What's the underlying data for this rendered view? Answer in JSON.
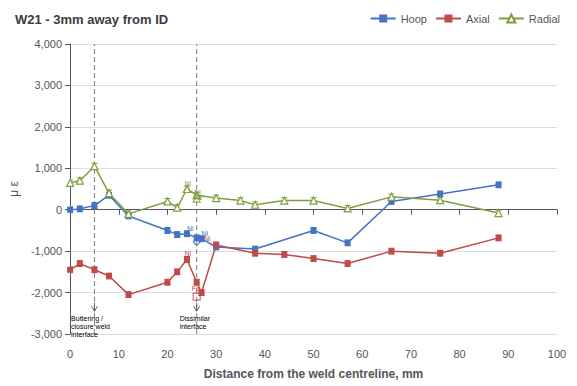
{
  "chart_data": {
    "type": "line",
    "title": "W21 - 3mm away from ID",
    "x_label": "Distance from the weld centreline, mm",
    "y_label": "μ ε",
    "xlim": [
      0,
      100
    ],
    "ylim": [
      -3000,
      4000
    ],
    "xticks": [
      0,
      10,
      20,
      30,
      40,
      50,
      60,
      70,
      80,
      90,
      100
    ],
    "yticks": [
      -3000,
      -2000,
      -1000,
      0,
      1000,
      2000,
      3000,
      4000
    ],
    "grid": "y",
    "legend": "upper right",
    "series": [
      {
        "name": "Hoop",
        "color": "#4472C4",
        "marker": "square",
        "line_style": "solid",
        "x": [
          0,
          2,
          5,
          8,
          12,
          20,
          22,
          24,
          26,
          27,
          30,
          38,
          50,
          57,
          66,
          76,
          88
        ],
        "values": [
          0,
          20,
          100,
          350,
          -150,
          -500,
          -600,
          -580,
          -680,
          -700,
          -900,
          -950,
          -500,
          -800,
          200,
          380,
          600
        ],
        "errors": [
          70,
          70,
          70,
          70,
          70,
          70,
          70,
          70,
          70,
          70,
          70,
          70,
          70,
          70,
          70,
          70,
          70
        ]
      },
      {
        "name": "Axial",
        "color": "#BE4B48",
        "marker": "square",
        "line_style": "solid",
        "x": [
          0,
          2,
          5,
          8,
          12,
          20,
          22,
          24,
          26,
          27,
          30,
          38,
          44,
          50,
          57,
          66,
          76,
          88
        ],
        "values": [
          -1450,
          -1300,
          -1450,
          -1600,
          -2050,
          -1750,
          -1500,
          -1200,
          -1750,
          -2000,
          -850,
          -1050,
          -1080,
          -1180,
          -1300,
          -1000,
          -1050,
          -680
        ],
        "errors": [
          70,
          70,
          70,
          70,
          70,
          70,
          70,
          70,
          70,
          70,
          70,
          70,
          70,
          70,
          70,
          70,
          70,
          70
        ]
      },
      {
        "name": "Radial",
        "color": "#7F9F3F",
        "marker": "triangle_open",
        "line_style": "solid",
        "x": [
          0,
          2,
          5,
          8,
          12,
          20,
          22,
          24,
          26,
          30,
          35,
          38,
          44,
          50,
          57,
          66,
          76,
          88
        ],
        "values": [
          650,
          700,
          1050,
          400,
          -100,
          200,
          50,
          500,
          350,
          280,
          220,
          120,
          220,
          220,
          30,
          310,
          230,
          -80
        ],
        "errors": [
          70,
          70,
          70,
          70,
          70,
          70,
          70,
          70,
          70,
          70,
          70,
          70,
          70,
          70,
          70,
          70,
          70,
          70
        ]
      }
    ],
    "vlines": [
      {
        "x": 5,
        "color": "#808080",
        "line_style": "dashed"
      },
      {
        "x": 26,
        "color": "#808080",
        "line_style": "dashed"
      }
    ],
    "arrows": [
      {
        "x": 5,
        "y_from": -2250,
        "y_to": -2450,
        "color": "#606060"
      },
      {
        "x": 26,
        "y_from": -2250,
        "y_to": -2450,
        "color": "#606060"
      }
    ],
    "interface_notes": [
      {
        "text": "Buttering /\nclosure weld\ninterface",
        "x": 0.2,
        "y": -2520
      },
      {
        "text": "Dissimilar\ninterface",
        "x": 22.5,
        "y": -2520
      }
    ],
    "element_labels": [
      {
        "text": "Ni",
        "x": 23.5,
        "y": 530,
        "color": "#7F9F3F"
      },
      {
        "text": "Ni",
        "x": 25.5,
        "y": 310,
        "color": "#7F9F3F"
      },
      {
        "text": "Fe",
        "x": 25.5,
        "y": 210,
        "color": "#7F9F3F"
      },
      {
        "text": "Ni",
        "x": 24,
        "y": -560,
        "color": "#4472C4"
      },
      {
        "text": "Ni",
        "x": 27,
        "y": -680,
        "color": "#4472C4"
      },
      {
        "text": "Fe",
        "x": 25.5,
        "y": -790,
        "color": "#4472C4"
      },
      {
        "text": "Ni",
        "x": 23.5,
        "y": -1150,
        "color": "#BE4B48"
      },
      {
        "text": "Ni",
        "x": 27.5,
        "y": -780,
        "color": "#BE4B48"
      },
      {
        "text": "Fe",
        "x": 25,
        "y": -2000,
        "color": "#BE4B48"
      }
    ],
    "extra_markers": [
      {
        "x": 24,
        "y": 500,
        "marker": "triangle_open",
        "color": "#7F9F3F"
      },
      {
        "x": 26,
        "y": 350,
        "marker": "triangle_open",
        "color": "#7F9F3F"
      },
      {
        "x": 26,
        "y": 270,
        "marker": "triangle_open",
        "color": "#7F9F3F"
      },
      {
        "x": 26,
        "y": -780,
        "marker": "diamond_open",
        "color": "#4472C4"
      },
      {
        "x": 26,
        "y": -2100,
        "marker": "square_open",
        "color": "#BE4B48"
      }
    ]
  }
}
